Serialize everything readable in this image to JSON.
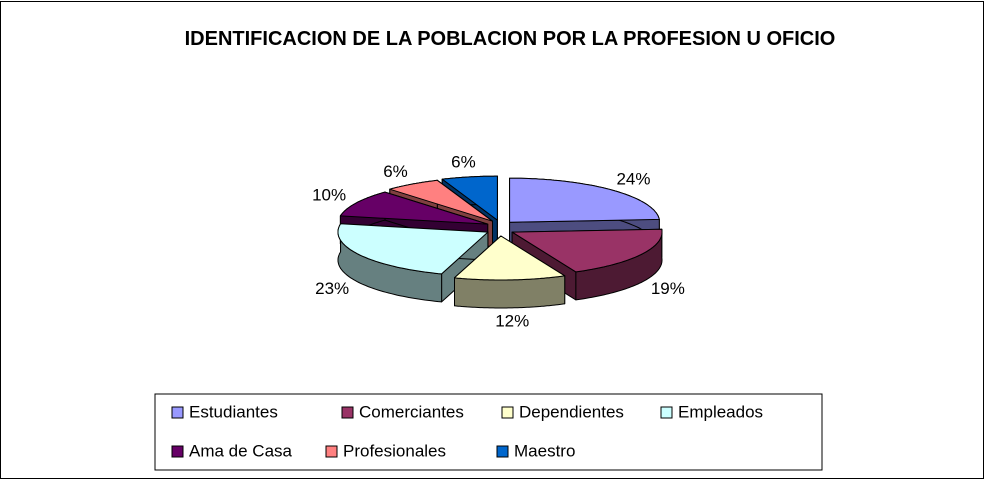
{
  "chart_data": {
    "type": "pie3d",
    "title": "IDENTIFICACION DE LA POBLACION POR LA PROFESION U OFICIO",
    "categories": [
      "Estudiantes",
      "Comerciantes",
      "Dependientes",
      "Empleados",
      "Ama de Casa",
      "Profesionales",
      "Maestro"
    ],
    "values": [
      24,
      19,
      12,
      23,
      10,
      6,
      6
    ],
    "value_labels": [
      "24%",
      "19%",
      "12%",
      "23%",
      "10%",
      "6%",
      "6%"
    ],
    "colors": [
      "#9999FF",
      "#993366",
      "#FFFFCC",
      "#CCFFFF",
      "#660066",
      "#FF8080",
      "#0066CC"
    ],
    "legend": "bottom"
  }
}
